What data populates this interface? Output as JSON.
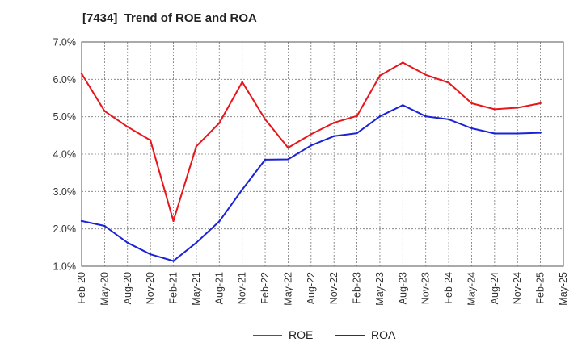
{
  "chart_data": {
    "type": "line",
    "title": "[7434]  Trend of ROE and ROA",
    "xlabel": "",
    "ylabel": "",
    "categories": [
      "Feb-20",
      "May-20",
      "Aug-20",
      "Nov-20",
      "Feb-21",
      "May-21",
      "Aug-21",
      "Nov-21",
      "Feb-22",
      "May-22",
      "Aug-22",
      "Nov-22",
      "Feb-23",
      "May-23",
      "Aug-23",
      "Nov-23",
      "Feb-24",
      "May-24",
      "Aug-24",
      "Nov-24",
      "Feb-25",
      "May-25"
    ],
    "yticks": [
      "1.0%",
      "2.0%",
      "3.0%",
      "4.0%",
      "5.0%",
      "6.0%",
      "7.0%"
    ],
    "ylim": [
      1.0,
      7.0
    ],
    "grid": true,
    "legend_position": "bottom",
    "series": [
      {
        "name": "ROE",
        "color": "#e8151b",
        "values": [
          6.15,
          5.15,
          4.73,
          4.37,
          2.21,
          4.21,
          4.83,
          5.93,
          4.93,
          4.17,
          4.53,
          4.84,
          5.02,
          6.1,
          6.45,
          6.12,
          5.91,
          5.36,
          5.2,
          5.24,
          5.36,
          null
        ]
      },
      {
        "name": "ROA",
        "color": "#1b23d6",
        "values": [
          2.21,
          2.08,
          1.63,
          1.32,
          1.14,
          1.63,
          2.2,
          3.05,
          3.85,
          3.86,
          4.23,
          4.48,
          4.56,
          5.01,
          5.31,
          5.01,
          4.93,
          4.69,
          4.55,
          4.55,
          4.57,
          null
        ]
      }
    ]
  }
}
